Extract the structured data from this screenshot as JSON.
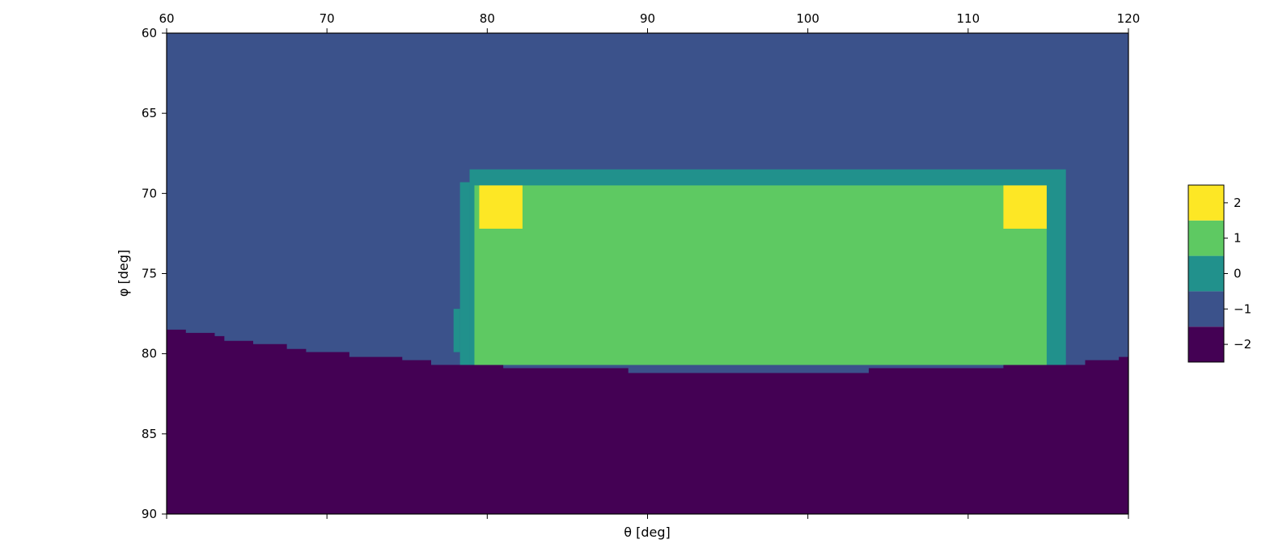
{
  "chart_data": {
    "type": "heatmap",
    "title": "",
    "xlabel": "θ [deg]",
    "ylabel": "φ [deg]",
    "xlim": [
      60,
      120
    ],
    "ylim": [
      60,
      90
    ],
    "y_inverted": true,
    "x_tick_position": "top",
    "x_ticks": [
      "60",
      "70",
      "80",
      "90",
      "100",
      "110",
      "120"
    ],
    "y_ticks": [
      "60",
      "65",
      "70",
      "75",
      "80",
      "85",
      "90"
    ],
    "colorbar": {
      "levels": [
        {
          "value": -2,
          "label": "−2",
          "color": "#440154"
        },
        {
          "value": -1,
          "label": "−1",
          "color": "#3b528b"
        },
        {
          "value": 0,
          "label": "0",
          "color": "#21918c"
        },
        {
          "value": 1,
          "label": "1",
          "color": "#5ec962"
        },
        {
          "value": 2,
          "label": "2",
          "color": "#fde725"
        }
      ]
    },
    "background_value": -1,
    "regions": [
      {
        "value": -2,
        "boundary_top": [
          [
            60.0,
            78.5
          ],
          [
            61.2,
            78.5
          ],
          [
            61.2,
            78.7
          ],
          [
            63.0,
            78.7
          ],
          [
            63.0,
            78.9
          ],
          [
            63.6,
            78.9
          ],
          [
            63.6,
            79.2
          ],
          [
            65.4,
            79.2
          ],
          [
            65.4,
            79.4
          ],
          [
            67.5,
            79.4
          ],
          [
            67.5,
            79.7
          ],
          [
            68.7,
            79.7
          ],
          [
            68.7,
            79.9
          ],
          [
            71.4,
            79.9
          ],
          [
            71.4,
            80.2
          ],
          [
            74.7,
            80.2
          ],
          [
            74.7,
            80.4
          ],
          [
            76.5,
            80.4
          ],
          [
            76.5,
            80.7
          ],
          [
            81.0,
            80.7
          ],
          [
            81.0,
            80.9
          ],
          [
            88.8,
            80.9
          ],
          [
            88.8,
            81.2
          ],
          [
            103.8,
            81.2
          ],
          [
            103.8,
            80.9
          ],
          [
            112.2,
            80.9
          ],
          [
            112.2,
            80.7
          ],
          [
            117.3,
            80.7
          ],
          [
            117.3,
            80.4
          ],
          [
            119.4,
            80.4
          ],
          [
            119.4,
            80.2
          ],
          [
            120.0,
            80.2
          ]
        ]
      },
      {
        "value": 0,
        "rects": [
          [
            78.9,
            68.5,
            116.1,
            80.7
          ],
          [
            78.3,
            69.3,
            78.9,
            80.7
          ],
          [
            77.9,
            77.2,
            78.3,
            79.9
          ]
        ]
      },
      {
        "value": 1,
        "rects": [
          [
            79.2,
            69.5,
            114.9,
            80.7
          ]
        ]
      },
      {
        "value": 2,
        "rects": [
          [
            79.5,
            69.5,
            82.2,
            72.2
          ],
          [
            112.2,
            69.5,
            114.9,
            72.2
          ]
        ]
      }
    ]
  }
}
